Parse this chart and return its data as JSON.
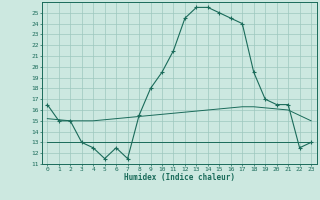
{
  "xlabel": "Humidex (Indice chaleur)",
  "x": [
    0,
    1,
    2,
    3,
    4,
    5,
    6,
    7,
    8,
    9,
    10,
    11,
    12,
    13,
    14,
    15,
    16,
    17,
    18,
    19,
    20,
    21,
    22,
    23
  ],
  "humidex": [
    16.5,
    15.0,
    15.0,
    13.0,
    12.5,
    11.5,
    12.5,
    11.5,
    15.5,
    18.0,
    19.5,
    21.5,
    24.5,
    25.5,
    25.5,
    25.0,
    24.5,
    24.0,
    19.5,
    17.0,
    16.5,
    16.5,
    12.5,
    13.0
  ],
  "min_line": [
    13.0,
    13.0,
    13.0,
    13.0,
    13.0,
    13.0,
    13.0,
    13.0,
    13.0,
    13.0,
    13.0,
    13.0,
    13.0,
    13.0,
    13.0,
    13.0,
    13.0,
    13.0,
    13.0,
    13.0,
    13.0,
    13.0,
    13.0,
    13.0
  ],
  "max_line": [
    15.2,
    15.1,
    15.0,
    15.0,
    15.0,
    15.1,
    15.2,
    15.3,
    15.4,
    15.5,
    15.6,
    15.7,
    15.8,
    15.9,
    16.0,
    16.1,
    16.2,
    16.3,
    16.3,
    16.2,
    16.1,
    16.0,
    15.5,
    15.0
  ],
  "ylim": [
    11,
    26
  ],
  "xlim": [
    -0.5,
    23.5
  ],
  "line_color": "#1a6b5a",
  "bg_color": "#cce8e0",
  "grid_color": "#9dc8be"
}
